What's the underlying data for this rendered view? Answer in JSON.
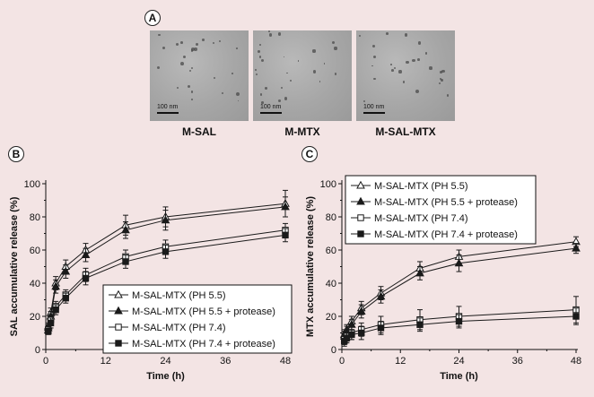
{
  "panels": {
    "a": {
      "letter": "A",
      "images": [
        {
          "scale": "100 nm",
          "caption": "M-SAL"
        },
        {
          "scale": "100 nm",
          "caption": "M-MTX"
        },
        {
          "scale": "100 nm",
          "caption": "M-SAL-MTX"
        }
      ]
    },
    "b": {
      "letter": "B"
    },
    "c": {
      "letter": "C"
    }
  },
  "colors": {
    "background": "#f3e4e4",
    "line": "#1a1a1a"
  },
  "chart_data": [
    {
      "type": "line",
      "panel": "B",
      "title": "",
      "xlabel": "Time (h)",
      "ylabel": "SAL accumulative release (%)",
      "xlim": [
        0,
        48
      ],
      "ylim": [
        0,
        100
      ],
      "xticks": [
        0,
        12,
        24,
        36,
        48
      ],
      "yticks": [
        0,
        20,
        40,
        60,
        80,
        100
      ],
      "legend_position": "bottom-right",
      "series": [
        {
          "name": "M-SAL-MTX (PH 5.5)",
          "marker": "triangle-open",
          "x": [
            0.5,
            1,
            2,
            4,
            8,
            16,
            24,
            48
          ],
          "y": [
            14,
            22,
            40,
            50,
            60,
            75,
            80,
            88
          ],
          "err": [
            2,
            3,
            4,
            4,
            4,
            6,
            6,
            8
          ]
        },
        {
          "name": "M-SAL-MTX (PH 5.5 + protease)",
          "marker": "triangle-filled",
          "x": [
            0.5,
            1,
            2,
            4,
            8,
            16,
            24,
            48
          ],
          "y": [
            13,
            20,
            38,
            47,
            57,
            72,
            78,
            86
          ],
          "err": [
            2,
            3,
            4,
            4,
            4,
            5,
            6,
            6
          ]
        },
        {
          "name": "M-SAL-MTX (PH 7.4)",
          "marker": "square-open",
          "x": [
            0.5,
            1,
            2,
            4,
            8,
            16,
            24,
            48
          ],
          "y": [
            12,
            18,
            26,
            33,
            45,
            56,
            62,
            72
          ],
          "err": [
            2,
            3,
            3,
            3,
            4,
            4,
            4,
            4
          ]
        },
        {
          "name": "M-SAL-MTX (PH 7.4 + protease)",
          "marker": "square-filled",
          "x": [
            0.5,
            1,
            2,
            4,
            8,
            16,
            24,
            48
          ],
          "y": [
            11,
            16,
            24,
            31,
            43,
            53,
            59,
            69
          ],
          "err": [
            2,
            3,
            3,
            3,
            4,
            4,
            4,
            4
          ]
        }
      ]
    },
    {
      "type": "line",
      "panel": "C",
      "title": "",
      "xlabel": "Time (h)",
      "ylabel": "MTX accumulative release (%)",
      "xlim": [
        0,
        48
      ],
      "ylim": [
        0,
        100
      ],
      "xticks": [
        0,
        12,
        24,
        36,
        48
      ],
      "yticks": [
        0,
        20,
        40,
        60,
        80,
        100
      ],
      "legend_position": "top-left",
      "series": [
        {
          "name": "M-SAL-MTX (PH 5.5)",
          "marker": "triangle-open",
          "x": [
            0.5,
            1,
            2,
            4,
            8,
            16,
            24,
            48
          ],
          "y": [
            9,
            12,
            17,
            25,
            34,
            49,
            56,
            65
          ],
          "err": [
            3,
            3,
            3,
            4,
            4,
            4,
            4,
            3
          ]
        },
        {
          "name": "M-SAL-MTX (PH 5.5 + protease)",
          "marker": "triangle-filled",
          "x": [
            0.5,
            1,
            2,
            4,
            8,
            16,
            24,
            48
          ],
          "y": [
            8,
            11,
            15,
            23,
            32,
            46,
            52,
            61
          ],
          "err": [
            3,
            3,
            3,
            4,
            4,
            4,
            5,
            3
          ]
        },
        {
          "name": "M-SAL-MTX (PH 7.4)",
          "marker": "square-open",
          "x": [
            0.5,
            1,
            2,
            4,
            8,
            16,
            24,
            48
          ],
          "y": [
            6,
            8,
            10,
            12,
            15,
            18,
            20,
            24
          ],
          "err": [
            3,
            3,
            4,
            4,
            5,
            6,
            6,
            8
          ]
        },
        {
          "name": "M-SAL-MTX (PH 7.4 + protease)",
          "marker": "square-filled",
          "x": [
            0.5,
            1,
            2,
            4,
            8,
            16,
            24,
            48
          ],
          "y": [
            5,
            7,
            9,
            10,
            13,
            15,
            17,
            20
          ],
          "err": [
            3,
            3,
            3,
            4,
            4,
            4,
            4,
            5
          ]
        }
      ]
    }
  ]
}
